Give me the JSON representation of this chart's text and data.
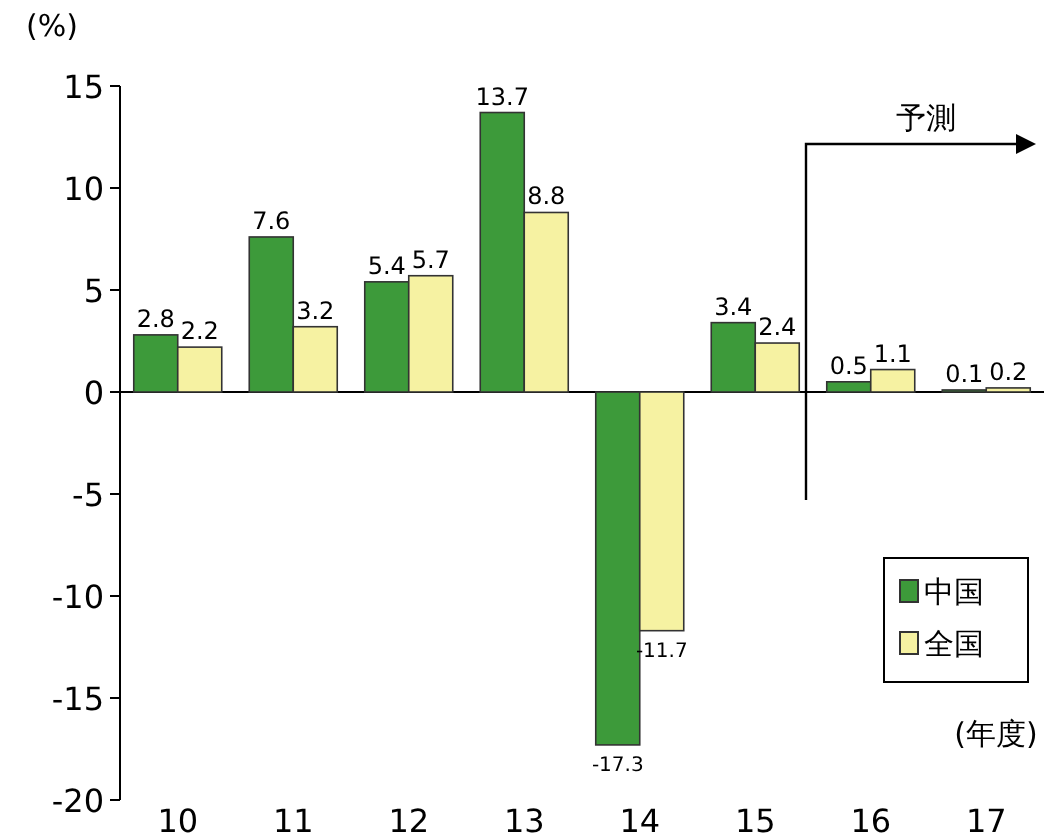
{
  "chart_data": {
    "type": "bar",
    "categories": [
      "10",
      "11",
      "12",
      "13",
      "14",
      "15",
      "16",
      "17"
    ],
    "series": [
      {
        "name": "中国",
        "color": "#3d9a3a",
        "values": [
          2.8,
          7.6,
          5.4,
          13.7,
          -17.3,
          3.4,
          0.5,
          0.1
        ]
      },
      {
        "name": "全国",
        "color": "#f6f2a2",
        "values": [
          2.2,
          3.2,
          5.7,
          8.8,
          -11.7,
          2.4,
          1.1,
          0.2
        ]
      }
    ],
    "ylim": [
      -20,
      15
    ],
    "yticks": [
      -20,
      -15,
      -10,
      -5,
      0,
      5,
      10,
      15
    ],
    "ylabel": "(%)",
    "xlabel": "(年度)",
    "data_labels": true,
    "legend": "bottom right",
    "annotations": [
      "予測"
    ]
  }
}
